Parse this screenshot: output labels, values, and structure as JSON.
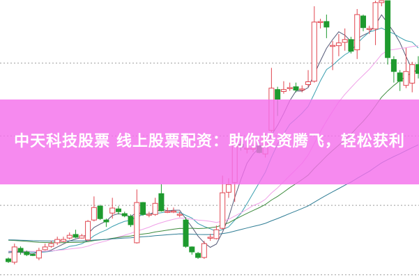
{
  "banner": {
    "title": "中天科技股票 线上股票配资：助你投资腾飞，轻松获利",
    "background_color": "#f470ec",
    "text_color": "#ffffff"
  },
  "chart_data": {
    "type": "candlestick",
    "title": "",
    "xlabel": "",
    "ylabel": "",
    "ylim": [
      0,
      100
    ],
    "grid": true,
    "grid_style": "dotted horizontal",
    "legend": "none",
    "colors": {
      "up": "#e0454f",
      "down": "#1e9a2e",
      "ma": [
        "#555a78",
        "#3a9fb0",
        "#f0a0e8",
        "#3c8a3c",
        "#2f7d95"
      ]
    },
    "moving_averages": [
      5,
      10,
      20,
      30,
      60
    ],
    "candles": [
      [
        7,
        6,
        7.5,
        5.5
      ],
      [
        5.8,
        11.3,
        12.5,
        5
      ],
      [
        10.8,
        9.5,
        11.5,
        8.5
      ],
      [
        9.5,
        8.5,
        10,
        8
      ],
      [
        8.6,
        8.5,
        9,
        8
      ],
      [
        7.3,
        10,
        11,
        6.5
      ],
      [
        10.3,
        11.3,
        12.5,
        10
      ],
      [
        11.5,
        12.5,
        13.5,
        11
      ],
      [
        12.8,
        14,
        15,
        12
      ],
      [
        13.3,
        14,
        15,
        13
      ],
      [
        14.5,
        15.5,
        16.5,
        14
      ],
      [
        15.8,
        14.8,
        17.5,
        14.5
      ],
      [
        14.5,
        15.3,
        16,
        14.3
      ],
      [
        13.8,
        20.5,
        21,
        13.5
      ],
      [
        21,
        25.5,
        29.5,
        20.5
      ],
      [
        26,
        21.5,
        26.5,
        21
      ],
      [
        21,
        20.3,
        21.5,
        18.5
      ],
      [
        23.5,
        25.3,
        29,
        21.5
      ],
      [
        25,
        24,
        26,
        23
      ],
      [
        23.3,
        22.5,
        24,
        22
      ],
      [
        22.3,
        19.3,
        23,
        18.5
      ],
      [
        12.8,
        27.3,
        32,
        12.5
      ],
      [
        27.3,
        23,
        27.5,
        22.5
      ],
      [
        23,
        23.1,
        24,
        22
      ],
      [
        23,
        27,
        29,
        22.5
      ],
      [
        30.5,
        24.3,
        34,
        24
      ],
      [
        24,
        24.1,
        25.5,
        23.5
      ],
      [
        24,
        24.2,
        25.5,
        23.5
      ],
      [
        23,
        23.1,
        24,
        22
      ],
      [
        21,
        11.5,
        22,
        11
      ],
      [
        11.3,
        9.5,
        11.5,
        8.5
      ],
      [
        9,
        7.5,
        9.5,
        7
      ],
      [
        7.5,
        12.5,
        13.5,
        7
      ],
      [
        14.5,
        14.8,
        16,
        13.5
      ],
      [
        14.3,
        17.5,
        19,
        14
      ],
      [
        18,
        30.8,
        37,
        17.5
      ],
      [
        31,
        33.8,
        36,
        29
      ],
      [
        34.5,
        48.5,
        51,
        27.5
      ],
      [
        48.3,
        47.3,
        49.5,
        46
      ],
      [
        46.8,
        46.9,
        48,
        45
      ],
      [
        46.8,
        46.9,
        48,
        45.5
      ],
      [
        47.8,
        45.3,
        49,
        45
      ],
      [
        44.8,
        50.3,
        52,
        43.5
      ],
      [
        53.3,
        68.5,
        75.8,
        52.5
      ],
      [
        68,
        64.5,
        69,
        58.5
      ],
      [
        67.3,
        68,
        71,
        66.5
      ],
      [
        68.5,
        68.7,
        70.5,
        67.5
      ],
      [
        69,
        67.8,
        70.5,
        67
      ],
      [
        68,
        68.2,
        69.5,
        67
      ],
      [
        69.8,
        70.8,
        75,
        69
      ],
      [
        71,
        92.3,
        98,
        70.5
      ],
      [
        92.3,
        92.5,
        93.5,
        90
      ],
      [
        92.5,
        90.5,
        95,
        86.5
      ],
      [
        83.8,
        83.9,
        85.5,
        75
      ],
      [
        83.8,
        84.8,
        88,
        80
      ],
      [
        85,
        86,
        90,
        82
      ],
      [
        86,
        81.8,
        87,
        81
      ],
      [
        82.3,
        95,
        97,
        79
      ],
      [
        94.5,
        90.3,
        95,
        89
      ],
      [
        89.8,
        90,
        91,
        88
      ],
      [
        89.8,
        99.3,
        100,
        84
      ],
      [
        99.3,
        100,
        100,
        98
      ],
      [
        100,
        79.5,
        100,
        77
      ],
      [
        78.8,
        74.5,
        80,
        70.5
      ],
      [
        74,
        71,
        75,
        67.5
      ],
      [
        69.5,
        74.5,
        83,
        68.5
      ],
      [
        70.3,
        77,
        78,
        67
      ],
      [
        77,
        73.8,
        80,
        72
      ]
    ]
  }
}
